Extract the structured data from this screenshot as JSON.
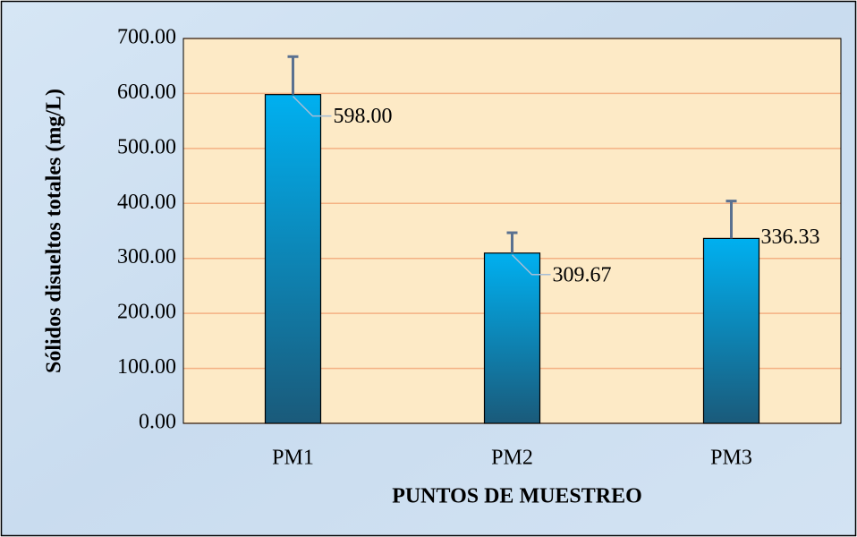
{
  "chart_data": {
    "type": "bar",
    "ylabel": "Sólidos disueltos totales (mg/L)",
    "xlabel": "PUNTOS DE MUESTREO",
    "categories": [
      "PM1",
      "PM2",
      "PM3"
    ],
    "values": [
      598.0,
      309.67,
      336.33
    ],
    "value_labels": [
      "598.00",
      "309.67",
      "336.33"
    ],
    "errors": [
      69,
      37,
      68
    ],
    "color": "#00b0f0",
    "ylim": [
      0,
      700
    ],
    "yticks": [
      {
        "value": 0,
        "label": "0.00"
      },
      {
        "value": 100,
        "label": "100.00"
      },
      {
        "value": 200,
        "label": "200.00"
      },
      {
        "value": 300,
        "label": "300.00"
      },
      {
        "value": 400,
        "label": "400.00"
      },
      {
        "value": 500,
        "label": "500.00"
      },
      {
        "value": 600,
        "label": "600.00"
      },
      {
        "value": 700,
        "label": "700.00"
      }
    ],
    "grid": true
  }
}
